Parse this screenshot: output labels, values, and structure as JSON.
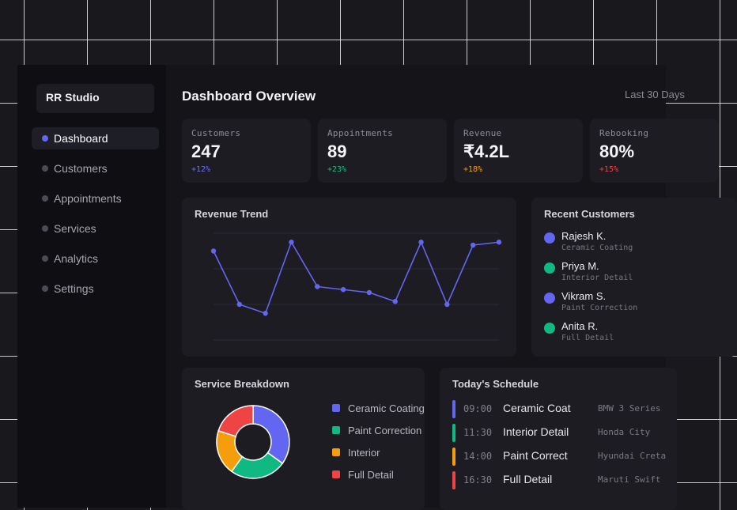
{
  "sidebar": {
    "brand": "RR Studio",
    "items": [
      {
        "label": "Dashboard",
        "active": true
      },
      {
        "label": "Customers"
      },
      {
        "label": "Appointments"
      },
      {
        "label": "Services"
      },
      {
        "label": "Analytics"
      },
      {
        "label": "Settings"
      }
    ]
  },
  "header": {
    "title": "Dashboard Overview",
    "range": "Last 30 Days"
  },
  "stats": [
    {
      "label": "Customers",
      "value": "247",
      "delta": "+12%",
      "delta_color": "#6b6ff5"
    },
    {
      "label": "Appointments",
      "value": "89",
      "delta": "+23%",
      "delta_color": "#1fb97a"
    },
    {
      "label": "Revenue",
      "value": "₹4.2L",
      "delta": "+18%",
      "delta_color": "#f59e0b"
    },
    {
      "label": "Rebooking",
      "value": "80%",
      "delta": "+15%",
      "delta_color": "#ef4444"
    }
  ],
  "revenue_trend": {
    "title": "Revenue Trend"
  },
  "recent_customers": {
    "title": "Recent Customers",
    "items": [
      {
        "name": "Rajesh K.",
        "service": "Ceramic Coating",
        "color": "#6366f1"
      },
      {
        "name": "Priya M.",
        "service": "Interior Detail",
        "color": "#10b981"
      },
      {
        "name": "Vikram S.",
        "service": "Paint Correction",
        "color": "#6366f1"
      },
      {
        "name": "Anita R.",
        "service": "Full Detail",
        "color": "#10b981"
      }
    ]
  },
  "service_breakdown": {
    "title": "Service Breakdown"
  },
  "schedule": {
    "title": "Today's Schedule",
    "items": [
      {
        "time": "09:00",
        "service": "Ceramic Coat",
        "car": "BMW 3 Series",
        "color": "#6366f1"
      },
      {
        "time": "11:30",
        "service": "Interior Detail",
        "car": "Honda City",
        "color": "#10b981"
      },
      {
        "time": "14:00",
        "service": "Paint Correct",
        "car": "Hyundai Creta",
        "color": "#f59e0b"
      },
      {
        "time": "16:30",
        "service": "Full Detail",
        "car": "Maruti Swift",
        "color": "#ef4444"
      }
    ]
  },
  "chart_data": [
    {
      "type": "line",
      "title": "Revenue Trend",
      "x": [
        1,
        2,
        3,
        4,
        5,
        6,
        7,
        8,
        9,
        10,
        11,
        12
      ],
      "series": [
        {
          "values": [
            30,
            12,
            9,
            33,
            18,
            17,
            16,
            13,
            33,
            12,
            32,
            33
          ]
        }
      ],
      "ylim": [
        0,
        36
      ],
      "grid": true,
      "color": "#6366f1"
    },
    {
      "type": "pie",
      "title": "Service Breakdown",
      "labels": [
        "Ceramic Coating",
        "Paint Correction",
        "Interior",
        "Full Detail"
      ],
      "values": [
        35,
        25,
        20,
        20
      ],
      "colors": [
        "#6366f1",
        "#10b981",
        "#f59e0b",
        "#ef4444"
      ],
      "donut": true,
      "legend": "right"
    }
  ]
}
